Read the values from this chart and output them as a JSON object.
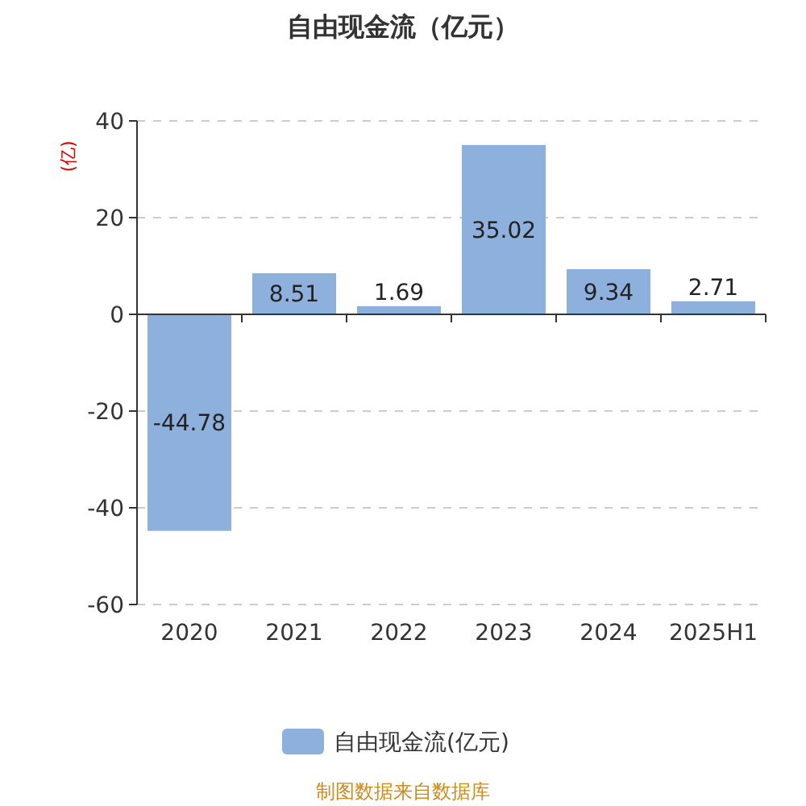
{
  "chart_data": {
    "type": "bar",
    "title": "自由现金流（亿元）",
    "ylabel": "(亿)",
    "categories": [
      "2020",
      "2021",
      "2022",
      "2023",
      "2024",
      "2025H1"
    ],
    "series": [
      {
        "name": "自由现金流(亿元)",
        "color": "#8eb0dd",
        "values": [
          -44.78,
          8.51,
          1.69,
          35.02,
          9.34,
          2.71
        ]
      }
    ],
    "ylim": [
      -60,
      40
    ],
    "yticks": [
      -60,
      -40,
      -20,
      0,
      20,
      40
    ],
    "grid": "y",
    "legend": "bottom",
    "data_labels": true,
    "annotations": [
      "制图数据来自数据库"
    ]
  }
}
